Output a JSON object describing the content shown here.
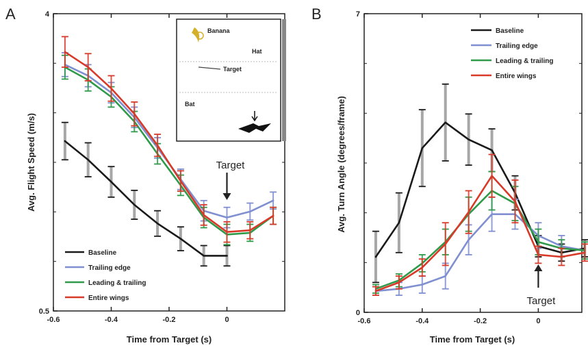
{
  "colors": {
    "baseline": "#1a1a1a",
    "trailing": "#7f8fd0",
    "leading_trailing": "#2f9a4a",
    "entire": "#d83a2a",
    "errorbar": "#8a8a8a"
  },
  "chart_data": [
    {
      "panel": "A",
      "type": "line",
      "xlabel": "Time  from Target (s)",
      "ylabel": "Avg. Flight Speed (m/s)",
      "xlim": [
        -0.6,
        0.2
      ],
      "ylim": [
        0.5,
        4
      ],
      "xticks": [
        -0.6,
        -0.4,
        -0.2,
        0
      ],
      "xtick_labels": [
        "-0.6",
        "-0.4",
        "-0.2",
        "0"
      ],
      "yticks": [
        0.5,
        4
      ],
      "ytick_labels": [
        "0.5",
        "4"
      ],
      "legend_position": "bottom-left",
      "annotation": "Target",
      "annotation_x": 0,
      "inset_labels": [
        "Banana",
        "Hat",
        "Target",
        "Bat"
      ],
      "series": [
        {
          "key": "baseline",
          "name": "Baseline",
          "x": [
            -0.56,
            -0.48,
            -0.4,
            -0.32,
            -0.24,
            -0.16,
            -0.08,
            0.0
          ],
          "y": [
            2.5,
            2.28,
            2.02,
            1.75,
            1.53,
            1.35,
            1.15,
            1.15
          ],
          "err": [
            0.22,
            0.2,
            0.18,
            0.17,
            0.15,
            0.14,
            0.12,
            0.12
          ]
        },
        {
          "key": "trailing",
          "name": "Trailing edge",
          "x": [
            -0.56,
            -0.48,
            -0.4,
            -0.32,
            -0.24,
            -0.16,
            -0.08,
            0.0,
            0.08,
            0.16
          ],
          "y": [
            3.4,
            3.27,
            3.07,
            2.78,
            2.42,
            2.05,
            1.68,
            1.6,
            1.67,
            1.8
          ],
          "err": [
            0.14,
            0.13,
            0.12,
            0.12,
            0.12,
            0.12,
            0.12,
            0.12,
            0.1,
            0.1
          ]
        },
        {
          "key": "leading_trailing",
          "name": "Leading & trailing",
          "x": [
            -0.56,
            -0.48,
            -0.4,
            -0.32,
            -0.24,
            -0.16,
            -0.08,
            0.0,
            0.08,
            0.16
          ],
          "y": [
            3.37,
            3.22,
            3.02,
            2.73,
            2.35,
            1.98,
            1.6,
            1.4,
            1.42,
            1.62
          ],
          "err": [
            0.14,
            0.13,
            0.12,
            0.12,
            0.12,
            0.12,
            0.12,
            0.12,
            0.1,
            0.1
          ]
        },
        {
          "key": "entire",
          "name": "Entire wings",
          "x": [
            -0.56,
            -0.48,
            -0.4,
            -0.32,
            -0.24,
            -0.16,
            -0.08,
            0.0,
            0.08,
            0.16
          ],
          "y": [
            3.55,
            3.37,
            3.12,
            2.82,
            2.45,
            2.03,
            1.63,
            1.43,
            1.45,
            1.62
          ],
          "err": [
            0.18,
            0.16,
            0.15,
            0.14,
            0.13,
            0.12,
            0.12,
            0.12,
            0.1,
            0.1
          ]
        }
      ]
    },
    {
      "panel": "B",
      "type": "line",
      "xlabel": "Time  from Target (s)",
      "ylabel": "Avg. Turn Angle (degrees/frame)",
      "xlim": [
        -0.6,
        0.15
      ],
      "ylim": [
        0,
        7
      ],
      "xticks": [
        -0.6,
        -0.4,
        -0.2,
        0
      ],
      "xtick_labels": [
        "-0.6",
        "-0.4",
        "-0.2",
        "0"
      ],
      "yticks": [
        0,
        7
      ],
      "ytick_labels": [
        "0",
        "7"
      ],
      "legend_position": "top-left",
      "annotation": "Target",
      "annotation_x": 0,
      "series": [
        {
          "key": "baseline",
          "name": "Baseline",
          "x": [
            -0.56,
            -0.48,
            -0.4,
            -0.32,
            -0.24,
            -0.16,
            -0.08,
            0.0,
            0.08,
            0.16
          ],
          "y": [
            1.3,
            2.1,
            3.85,
            4.45,
            4.05,
            3.8,
            2.8,
            1.55,
            1.4,
            1.5
          ],
          "err": [
            0.6,
            0.7,
            0.9,
            0.9,
            0.6,
            0.5,
            0.4,
            0.25,
            0.2,
            0.2
          ]
        },
        {
          "key": "trailing",
          "name": "Trailing edge",
          "x": [
            -0.56,
            -0.48,
            -0.4,
            -0.32,
            -0.24,
            -0.16,
            -0.08,
            0.0,
            0.08,
            0.16
          ],
          "y": [
            0.5,
            0.55,
            0.65,
            0.85,
            1.7,
            2.3,
            2.3,
            1.8,
            1.55,
            1.45
          ],
          "err": [
            0.1,
            0.15,
            0.2,
            0.3,
            0.35,
            0.4,
            0.35,
            0.3,
            0.25,
            0.2
          ]
        },
        {
          "key": "leading_trailing",
          "name": "Leading & trailing",
          "x": [
            -0.56,
            -0.48,
            -0.4,
            -0.32,
            -0.24,
            -0.16,
            -0.08,
            0.0,
            0.08,
            0.16
          ],
          "y": [
            0.55,
            0.75,
            1.15,
            1.65,
            2.3,
            2.85,
            2.55,
            1.65,
            1.5,
            1.45
          ],
          "err": [
            0.1,
            0.15,
            0.2,
            0.3,
            0.4,
            0.45,
            0.4,
            0.3,
            0.2,
            0.2
          ]
        },
        {
          "key": "entire",
          "name": "Entire wings",
          "x": [
            -0.56,
            -0.48,
            -0.4,
            -0.32,
            -0.24,
            -0.16,
            -0.08,
            0.0,
            0.08,
            0.16
          ],
          "y": [
            0.5,
            0.7,
            1.05,
            1.6,
            2.35,
            3.2,
            2.6,
            1.35,
            1.3,
            1.4
          ],
          "err": [
            0.1,
            0.15,
            0.2,
            0.5,
            0.5,
            0.5,
            0.5,
            0.2,
            0.2,
            0.2
          ]
        }
      ]
    }
  ]
}
